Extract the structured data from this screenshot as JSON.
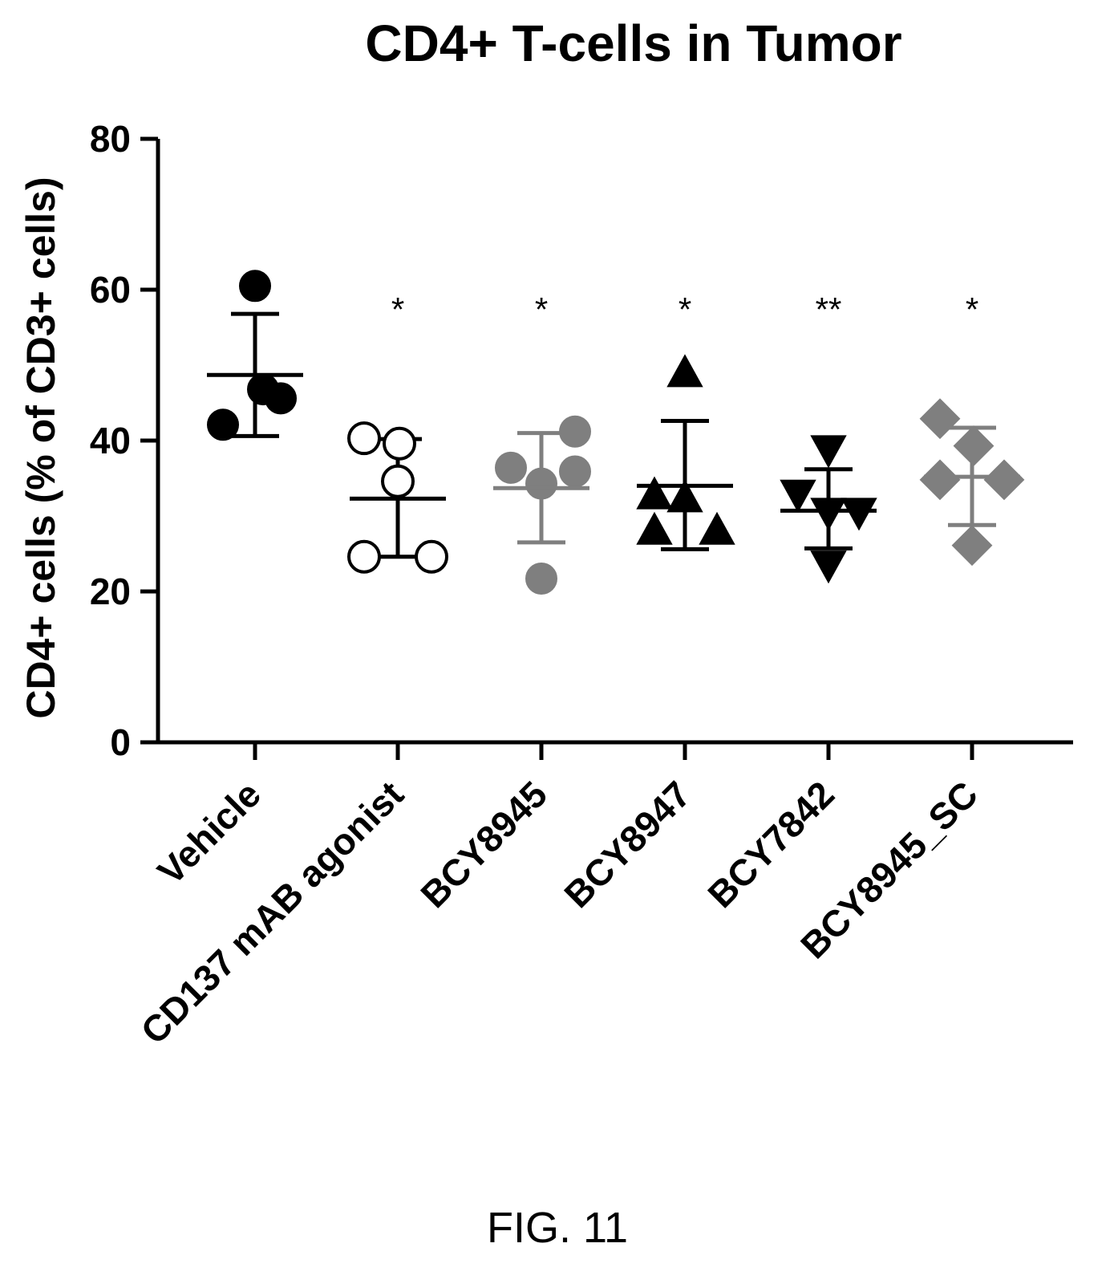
{
  "chart_data": {
    "type": "scatter",
    "title": "CD4+ T-cells in Tumor",
    "ylabel": "CD4+ cells (% of CD3+ cells)",
    "xlabel": "",
    "ylim": [
      0,
      80
    ],
    "yticks": [
      "0",
      "20",
      "40",
      "60",
      "80"
    ],
    "grid": false,
    "legend": "none",
    "categories": [
      "Vehicle",
      "CD137 mAB agonist",
      "BCY8945",
      "BCY8947",
      "BCY7842",
      "BCY8945_SC"
    ],
    "groups": [
      {
        "category": "Vehicle",
        "marker": "circle",
        "color": "#000000",
        "filled": true,
        "points": [
          60.5,
          46.8,
          45.6,
          42.1
        ],
        "mean": 48.7,
        "sd_low": 40.6,
        "sd_high": 56.8,
        "significance": ""
      },
      {
        "category": "CD137 mAB agonist",
        "marker": "circle",
        "color": "#000000",
        "filled": false,
        "points": [
          40.3,
          39.6,
          34.6,
          24.6,
          24.6
        ],
        "mean": 32.3,
        "sd_low": 24.6,
        "sd_high": 40.2,
        "significance": "*"
      },
      {
        "category": "BCY8945",
        "marker": "circle",
        "color": "#7f7f7f",
        "filled": true,
        "points": [
          41.2,
          36.4,
          35.9,
          34.3,
          21.7
        ],
        "mean": 33.7,
        "sd_low": 26.5,
        "sd_high": 41.0,
        "significance": "*"
      },
      {
        "category": "BCY8947",
        "marker": "triangle-up",
        "color": "#000000",
        "filled": true,
        "points": [
          48.9,
          32.7,
          32.3,
          28.0,
          28.0
        ],
        "mean": 34.0,
        "sd_low": 25.6,
        "sd_high": 42.6,
        "significance": "*"
      },
      {
        "category": "BCY7842",
        "marker": "triangle-down",
        "color": "#000000",
        "filled": true,
        "points": [
          38.9,
          33.0,
          30.6,
          30.6,
          23.6
        ],
        "mean": 30.7,
        "sd_low": 25.7,
        "sd_high": 36.2,
        "significance": "**"
      },
      {
        "category": "BCY8945_SC",
        "marker": "diamond",
        "color": "#7f7f7f",
        "filled": true,
        "points": [
          42.9,
          39.3,
          34.8,
          34.8,
          26.1
        ],
        "mean": 35.2,
        "sd_low": 28.8,
        "sd_high": 41.7,
        "significance": "*"
      }
    ]
  },
  "caption": "FIG. 11"
}
